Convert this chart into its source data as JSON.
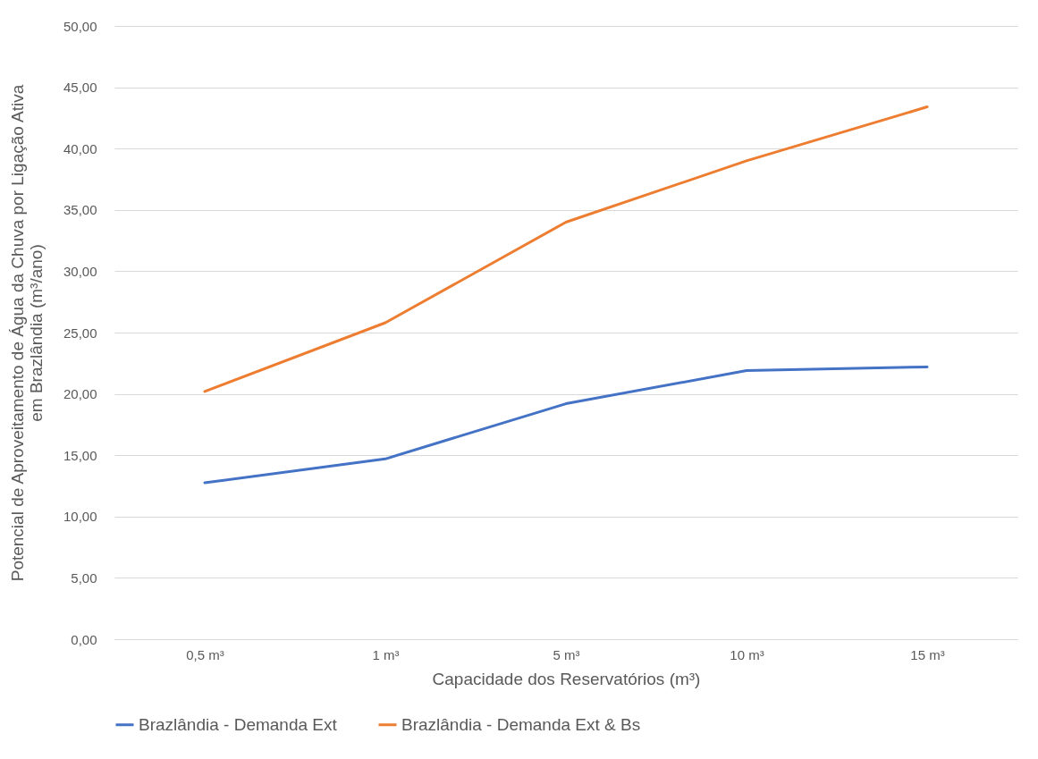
{
  "chart_data": {
    "type": "line",
    "xlabel": "Capacidade dos Reservatórios (m³)",
    "ylabel": "Potencial de Aproveitamento de Água da Chuva por Ligação Ativa\nem Brazlândia (m³/ano)",
    "categories": [
      "0,5 m³",
      "1 m³",
      "5 m³",
      "10 m³",
      "15 m³"
    ],
    "series": [
      {
        "name": "Brazlândia - Demanda Ext",
        "color": "#4472c4",
        "values": [
          12.75,
          14.7,
          19.2,
          21.9,
          22.2
        ]
      },
      {
        "name": "Brazlândia - Demanda Ext & Bs",
        "color": "#ed7d31",
        "values": [
          20.2,
          25.8,
          34.0,
          39.0,
          43.4
        ]
      }
    ],
    "ylim": [
      0,
      50
    ],
    "yticks": [
      {
        "value": 0,
        "label": "0,00"
      },
      {
        "value": 5,
        "label": "5,00"
      },
      {
        "value": 10,
        "label": "10,00"
      },
      {
        "value": 15,
        "label": "15,00"
      },
      {
        "value": 20,
        "label": "20,00"
      },
      {
        "value": 25,
        "label": "25,00"
      },
      {
        "value": 30,
        "label": "30,00"
      },
      {
        "value": 35,
        "label": "35,00"
      },
      {
        "value": 40,
        "label": "40,00"
      },
      {
        "value": 45,
        "label": "45,00"
      },
      {
        "value": 50,
        "label": "50,00"
      }
    ],
    "grid": "y",
    "legend": "bottom",
    "marker": "none",
    "line_style": "solid"
  }
}
